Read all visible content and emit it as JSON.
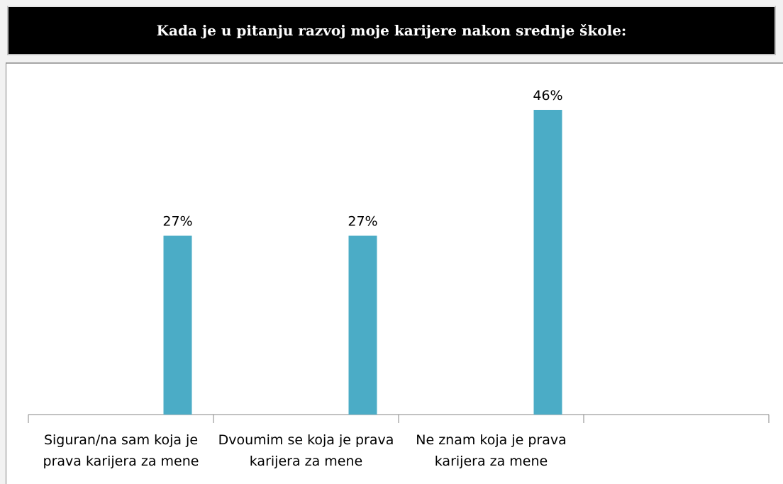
{
  "chart_data": {
    "type": "bar",
    "title": "Kada je u pitanju razvoj moje karijere nakon srednje škole:",
    "categories": [
      "Siguran/na sam koja je prava karijera za mene",
      "Dvoumim se koja je prava karijera za mene",
      "Ne znam koja je prava karijera za mene",
      null
    ],
    "values": [
      27,
      27,
      46,
      null
    ],
    "value_labels": [
      "27%",
      "27%",
      "46%",
      null
    ],
    "color": "#4bacc6"
  }
}
